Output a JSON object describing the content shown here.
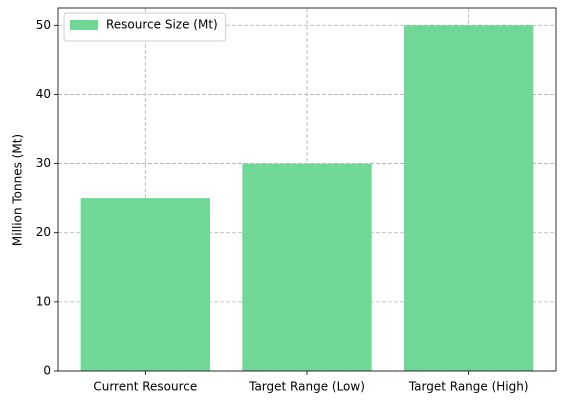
{
  "chart_data": {
    "type": "bar",
    "ylabel": "Million Tonnes (Mt)",
    "categories": [
      "Current Resource",
      "Target Range (Low)",
      "Target Range (High)"
    ],
    "series": [
      {
        "name": "Resource Size (Mt)",
        "color": "#71d796",
        "values": [
          25,
          30,
          50
        ]
      }
    ],
    "ylim": [
      0,
      52.5
    ],
    "yticks": [
      0,
      10,
      20,
      30,
      40,
      50
    ],
    "grid": true,
    "legend": "upper left"
  }
}
